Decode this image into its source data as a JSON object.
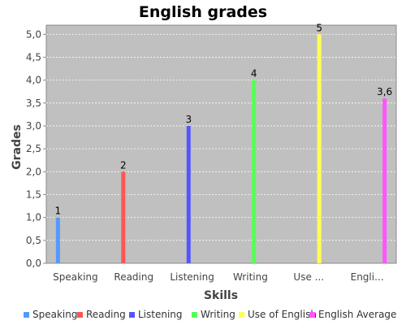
{
  "chart_data": {
    "type": "bar",
    "title": "English grades",
    "xlabel": "Skills",
    "ylabel": "Grades",
    "ylim": [
      0,
      5.2
    ],
    "yticks": [
      "0,0",
      "0,5",
      "1,0",
      "1,5",
      "2,0",
      "2,5",
      "3,0",
      "3,5",
      "4,0",
      "4,5",
      "5,0"
    ],
    "categories": [
      "Speaking",
      "Reading",
      "Listening",
      "Writing",
      "Use ...",
      "Engli..."
    ],
    "series": [
      {
        "name": "Speaking",
        "color": "#5599ff",
        "values": [
          1,
          null,
          null,
          null,
          null,
          null
        ],
        "label": "1"
      },
      {
        "name": "Reading",
        "color": "#ff5555",
        "values": [
          null,
          2,
          null,
          null,
          null,
          null
        ],
        "label": "2"
      },
      {
        "name": "Listening",
        "color": "#5555ff",
        "values": [
          null,
          null,
          3,
          null,
          null,
          null
        ],
        "label": "3"
      },
      {
        "name": "Writing",
        "color": "#55ff55",
        "values": [
          null,
          null,
          null,
          4,
          null,
          null
        ],
        "label": "4"
      },
      {
        "name": "Use of English",
        "color": "#ffff55",
        "values": [
          null,
          null,
          null,
          null,
          5,
          null
        ],
        "label": "5"
      },
      {
        "name": "English Average",
        "color": "#ff55ff",
        "values": [
          null,
          null,
          null,
          null,
          null,
          3.6
        ],
        "label": "3,6"
      }
    ],
    "grid": true,
    "plot_background": "#c0c0c0",
    "legend_position": "bottom"
  }
}
